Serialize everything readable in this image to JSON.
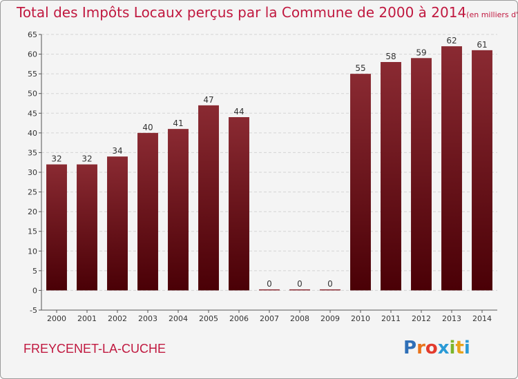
{
  "chart_data": {
    "type": "bar",
    "title": "Total des Impôts Locaux perçus par la Commune de 2000 à 2014",
    "unit_label": "(en milliers d'€)",
    "categories": [
      "2000",
      "2001",
      "2002",
      "2003",
      "2004",
      "2005",
      "2006",
      "2007",
      "2008",
      "2009",
      "2010",
      "2011",
      "2012",
      "2013",
      "2014"
    ],
    "values": [
      32,
      32,
      34,
      40,
      41,
      47,
      44,
      0,
      0,
      0,
      55,
      58,
      59,
      62,
      61
    ],
    "ylim": [
      -5,
      65
    ],
    "yticks": [
      -5,
      0,
      5,
      10,
      15,
      20,
      25,
      30,
      35,
      40,
      45,
      50,
      55,
      60,
      65
    ],
    "grid": true,
    "xlabel": "",
    "ylabel": "",
    "bar_color_top": "#8a2a32",
    "bar_color_bottom": "#4a0006"
  },
  "footer": {
    "commune": "FREYCENET-LA-CUCHE",
    "logo_letters": [
      "P",
      "r",
      "o",
      "x",
      "i",
      "t",
      "i"
    ],
    "logo_colors": [
      "#2f6fb7",
      "#e8731b",
      "#e33b2d",
      "#2a9ad6",
      "#7cb52a",
      "#e8a21b",
      "#2a9ad6"
    ]
  }
}
